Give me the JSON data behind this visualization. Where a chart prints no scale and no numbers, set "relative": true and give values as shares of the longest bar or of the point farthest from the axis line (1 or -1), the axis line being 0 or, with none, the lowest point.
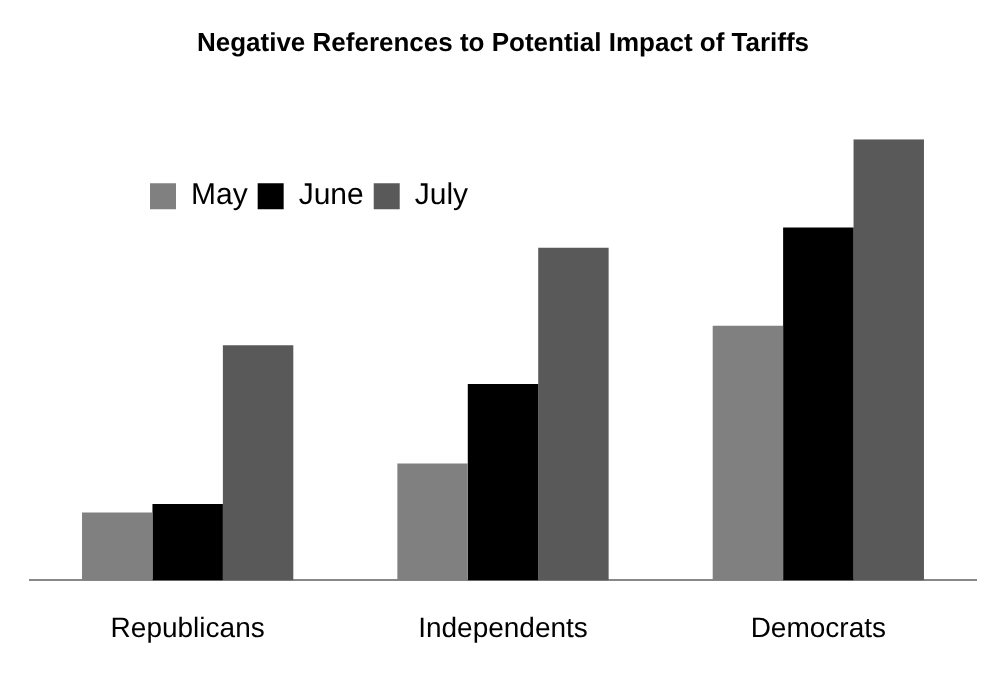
{
  "chart_data": {
    "type": "bar",
    "title": "Negative References to Potential Impact of Tariffs",
    "categories": [
      "Republicans",
      "Independents",
      "Democrats"
    ],
    "relative": true,
    "legend": "top left",
    "grid": false,
    "series": [
      {
        "name": "May",
        "color": "#808080",
        "values": [
          0.154,
          0.265,
          0.577
        ]
      },
      {
        "name": "June",
        "color": "#000000",
        "values": [
          0.173,
          0.445,
          0.8
        ]
      },
      {
        "name": "July",
        "color": "#595959",
        "values": [
          0.533,
          0.754,
          1
        ]
      }
    ]
  }
}
